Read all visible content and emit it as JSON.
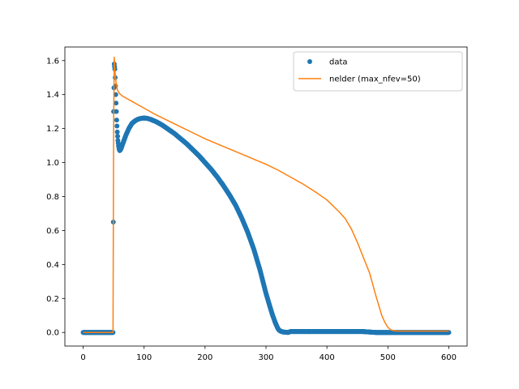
{
  "chart_data": {
    "type": "scatter",
    "title": "",
    "xlabel": "",
    "ylabel": "",
    "xlim": [
      -30,
      630
    ],
    "ylim": [
      -0.08,
      1.68
    ],
    "xticks": [
      0,
      100,
      200,
      300,
      400,
      500,
      600
    ],
    "yticks": [
      0.0,
      0.2,
      0.4,
      0.6,
      0.8,
      1.0,
      1.2,
      1.4,
      1.6
    ],
    "grid": false,
    "legend_position": "upper right",
    "series": [
      {
        "name": "data",
        "kind": "markers",
        "color": "#1f77b4",
        "x": [
          0,
          10,
          20,
          30,
          40,
          49,
          50,
          51,
          52,
          53,
          54,
          55,
          56,
          57,
          58,
          59,
          60,
          61,
          62,
          63,
          65,
          67,
          70,
          75,
          80,
          85,
          90,
          95,
          100,
          105,
          110,
          120,
          130,
          140,
          150,
          160,
          170,
          180,
          190,
          200,
          210,
          220,
          230,
          240,
          250,
          260,
          270,
          280,
          290,
          295,
          300,
          305,
          310,
          315,
          318,
          320,
          322,
          325,
          328,
          330,
          333,
          336,
          340,
          345,
          350,
          360,
          380,
          400,
          420,
          440,
          460,
          480,
          500,
          520,
          540,
          560,
          580,
          600
        ],
        "y": [
          0.0,
          0.0,
          0.0,
          0.0,
          0.0,
          0.0,
          1.3,
          1.58,
          1.55,
          1.45,
          1.35,
          1.25,
          1.18,
          1.13,
          1.1,
          1.08,
          1.07,
          1.075,
          1.08,
          1.09,
          1.11,
          1.13,
          1.16,
          1.2,
          1.23,
          1.245,
          1.255,
          1.26,
          1.262,
          1.26,
          1.255,
          1.24,
          1.22,
          1.195,
          1.17,
          1.14,
          1.11,
          1.075,
          1.04,
          1.0,
          0.96,
          0.915,
          0.865,
          0.81,
          0.75,
          0.675,
          0.59,
          0.49,
          0.37,
          0.3,
          0.23,
          0.17,
          0.11,
          0.06,
          0.035,
          0.02,
          0.012,
          0.006,
          0.003,
          0.002,
          0.001,
          0.0,
          0.005,
          0.005,
          0.005,
          0.005,
          0.005,
          0.005,
          0.005,
          0.005,
          0.005,
          0.0,
          0.0,
          0.0,
          0.0,
          0.0,
          0.0,
          0.0
        ]
      },
      {
        "name": "nelder (max_nfev=50)",
        "kind": "line",
        "color": "#ff7f0e",
        "x": [
          0,
          10,
          20,
          30,
          40,
          49,
          50,
          51,
          52,
          53,
          54,
          55,
          56,
          58,
          60,
          65,
          70,
          80,
          100,
          120,
          140,
          160,
          180,
          200,
          220,
          240,
          260,
          280,
          300,
          320,
          340,
          360,
          380,
          400,
          420,
          430,
          440,
          450,
          460,
          470,
          480,
          485,
          490,
          495,
          500,
          505,
          510,
          515,
          520,
          540,
          560,
          580,
          600
        ],
        "y": [
          0.0,
          0.0,
          0.0,
          0.0,
          0.0,
          0.0,
          1.2,
          1.62,
          1.55,
          1.5,
          1.47,
          1.45,
          1.43,
          1.415,
          1.405,
          1.39,
          1.38,
          1.36,
          1.32,
          1.28,
          1.245,
          1.21,
          1.175,
          1.14,
          1.11,
          1.08,
          1.05,
          1.02,
          0.99,
          0.955,
          0.915,
          0.875,
          0.83,
          0.78,
          0.71,
          0.67,
          0.61,
          0.53,
          0.44,
          0.35,
          0.22,
          0.16,
          0.1,
          0.06,
          0.03,
          0.015,
          0.01,
          0.008,
          0.008,
          0.008,
          0.008,
          0.008,
          0.008
        ]
      }
    ]
  }
}
